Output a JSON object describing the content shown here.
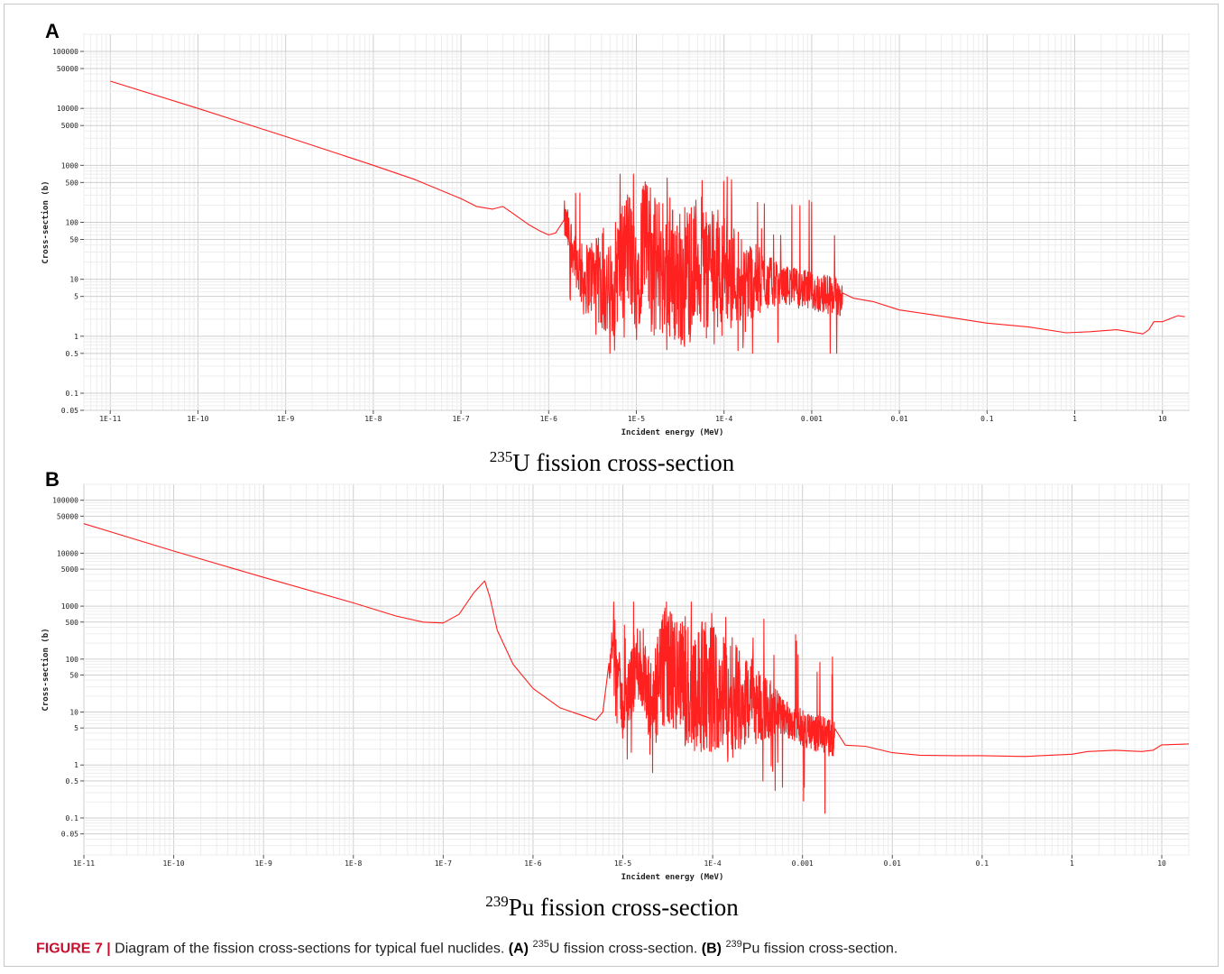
{
  "panels": [
    {
      "letter": "A",
      "title_sup": "235",
      "title_text": "U fission cross-section"
    },
    {
      "letter": "B",
      "title_sup": "239",
      "title_text": "Pu fission cross-section"
    }
  ],
  "caption": {
    "figure_label": "FIGURE 7 |",
    "text": " Diagram of the fission cross-sections for typical fuel nuclides. ",
    "a_label": "(A)",
    "a_sup": "235",
    "a_text": "U fission cross-section. ",
    "b_label": "(B)",
    "b_sup": "239",
    "b_text": "Pu fission cross-section."
  },
  "chart_data": [
    {
      "type": "line",
      "panel": "A",
      "xlabel": "Incident energy (MeV)",
      "ylabel": "Cross-section (b)",
      "xscale": "log",
      "yscale": "log",
      "xlim": [
        5e-12,
        20
      ],
      "ylim": [
        0.05,
        200000
      ],
      "x_ticks": [
        "1E-11",
        "1E-10",
        "1E-9",
        "1E-8",
        "1E-7",
        "1E-6",
        "1E-5",
        "1E-4",
        "0.001",
        "0.01",
        "0.1",
        "1",
        "10"
      ],
      "y_ticks": [
        "100000",
        "50000",
        "10000",
        "5000",
        "1000",
        "500",
        "100",
        "50",
        "10",
        "5",
        "1",
        "0.5",
        "0.1",
        "0.05"
      ],
      "grid": true,
      "line_color": "#ff2020",
      "series": [
        {
          "x": [
            1e-11,
            1e-10,
            1e-09,
            1e-08,
            3e-08,
            1e-07,
            1.5e-07,
            2.3e-07,
            3e-07,
            4e-07,
            6e-07,
            8e-07,
            1e-06,
            1.2e-06,
            1.5e-06,
            2e-06,
            2.5e-06,
            3e-06,
            4e-06,
            5e-06,
            6e-06,
            8e-06,
            1e-05,
            1.2e-05,
            1.5e-05,
            2e-05,
            3e-05,
            5e-05,
            0.0001,
            0.0002,
            0.0005,
            0.001,
            0.00225,
            0.003,
            0.005,
            0.01,
            0.02,
            0.05,
            0.1,
            0.3,
            0.8,
            1.5,
            3,
            6,
            7,
            8,
            10,
            15,
            18
          ],
          "y": [
            30000,
            10000,
            3200,
            1000,
            560,
            260,
            190,
            170,
            190,
            140,
            90,
            70,
            60,
            65,
            110,
            28,
            9,
            12,
            8,
            5,
            15,
            40,
            10,
            60,
            15,
            20,
            10,
            20,
            15,
            10,
            8,
            6,
            5,
            4.6,
            3.8,
            3.0,
            2.4,
            2.0,
            1.7,
            1.45,
            1.15,
            1.2,
            1.3,
            1.1,
            1.3,
            1.8,
            1.8,
            2.3,
            2.2
          ]
        }
      ],
      "resonance_region_x": [
        1.5e-06,
        0.00225
      ],
      "resonance_peak_max": 700,
      "resonance_trough_min": 0.5
    },
    {
      "type": "line",
      "panel": "B",
      "xlabel": "Incident energy (MeV)",
      "ylabel": "Cross-section (b)",
      "xscale": "log",
      "yscale": "log",
      "xlim": [
        1e-11,
        20
      ],
      "ylim": [
        0.02,
        200000
      ],
      "x_ticks": [
        "1E-11",
        "1E-10",
        "1E-9",
        "1E-8",
        "1E-7",
        "1E-6",
        "1E-5",
        "1E-4",
        "0.001",
        "0.01",
        "0.1",
        "1",
        "10"
      ],
      "y_ticks": [
        "100000",
        "50000",
        "10000",
        "5000",
        "1000",
        "500",
        "100",
        "50",
        "10",
        "5",
        "1",
        "0.5",
        "0.1",
        "0.05"
      ],
      "grid": true,
      "line_color": "#ff2020",
      "series": [
        {
          "x": [
            1e-11,
            1e-10,
            1e-09,
            1e-08,
            3e-08,
            6e-08,
            1e-07,
            1.5e-07,
            2.2e-07,
            2.9e-07,
            3.3e-07,
            4e-07,
            6e-07,
            1e-06,
            2e-06,
            4e-06,
            5e-06,
            6e-06,
            8e-06,
            1e-05,
            1.5e-05,
            2e-05,
            3e-05,
            5e-05,
            0.0001,
            0.0002,
            0.0005,
            0.001,
            0.0023,
            0.003,
            0.005,
            0.01,
            0.02,
            0.05,
            0.1,
            0.3,
            1,
            1.5,
            3,
            6,
            8,
            10,
            20
          ],
          "y": [
            36000,
            11000,
            3500,
            1150,
            650,
            500,
            480,
            700,
            1800,
            3000,
            1500,
            350,
            80,
            28,
            12,
            8,
            7,
            10,
            300,
            10,
            100,
            10,
            80,
            30,
            30,
            20,
            10,
            5,
            3,
            2.5,
            2.2,
            1.8,
            1.6,
            1.5,
            1.5,
            1.45,
            1.6,
            1.8,
            1.9,
            1.8,
            1.9,
            2.4,
            2.5
          ]
        }
      ],
      "resonance_region_x": [
        7e-06,
        0.0023
      ],
      "resonance_peak_max": 1200,
      "resonance_trough_min": 0.07
    }
  ]
}
